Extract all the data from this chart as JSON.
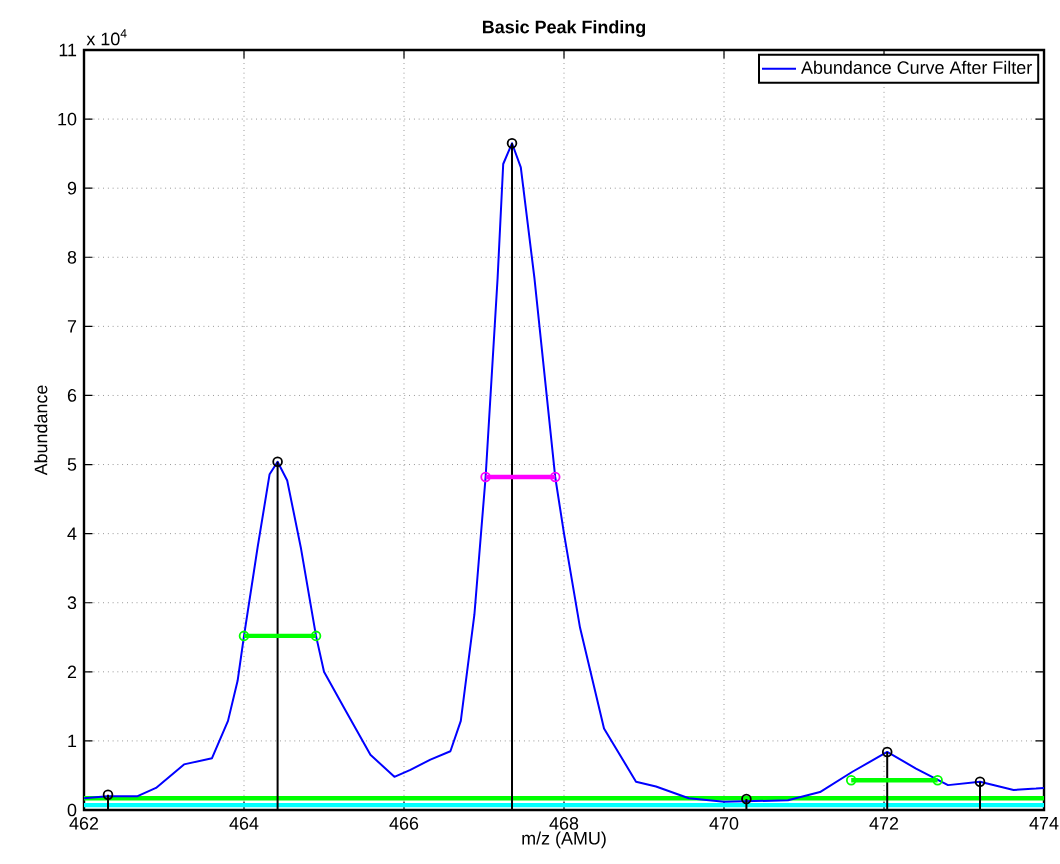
{
  "chart_data": {
    "type": "line",
    "title": "Basic Peak Finding",
    "xlabel": "m/z (AMU)",
    "ylabel": "Abundance",
    "annotations": [
      "x 10$^{4}$"
    ],
    "xlim": [
      462,
      474
    ],
    "xticks": [
      462,
      464,
      466,
      468,
      470,
      472,
      474
    ],
    "ylim": [
      0,
      11
    ],
    "yticks": [
      0,
      1,
      2,
      3,
      4,
      5,
      6,
      7,
      8,
      9,
      10,
      11
    ],
    "grid": true,
    "legend": "top right",
    "series": [
      {
        "color": "#00ffff",
        "marker": "none",
        "x": [
          462,
          474
        ],
        "values": [
          0.07,
          0.07
        ]
      },
      {
        "color": "#00ff00",
        "marker": "none",
        "x": [
          462,
          474
        ],
        "values": [
          0.17,
          0.17
        ]
      },
      {
        "name": "Abundance Curve After Filter",
        "color": "#0000ff",
        "marker": "none",
        "x": [
          462,
          462.29,
          462.67,
          462.9,
          463.25,
          463.6,
          463.8,
          463.92,
          464.0,
          464.17,
          464.32,
          464.42,
          464.54,
          464.71,
          464.9,
          465.0,
          465.25,
          465.58,
          465.88,
          466.08,
          466.33,
          466.58,
          466.71,
          466.88,
          467.02,
          467.17,
          467.24,
          467.35,
          467.46,
          467.63,
          467.89,
          468.0,
          468.2,
          468.5,
          468.9,
          469.15,
          469.56,
          470.0,
          470.8,
          471.2,
          471.6,
          472.04,
          472.4,
          472.8,
          473.2,
          473.62,
          473.9,
          474
        ],
        "values": [
          0.17,
          0.2,
          0.2,
          0.32,
          0.66,
          0.75,
          1.29,
          1.87,
          2.52,
          3.8,
          4.86,
          5.04,
          4.77,
          3.8,
          2.52,
          2.0,
          1.48,
          0.8,
          0.48,
          0.58,
          0.73,
          0.85,
          1.29,
          2.83,
          4.82,
          7.7,
          9.35,
          9.65,
          9.3,
          7.7,
          4.82,
          4.0,
          2.64,
          1.18,
          0.41,
          0.34,
          0.17,
          0.12,
          0.14,
          0.26,
          0.55,
          0.84,
          0.6,
          0.36,
          0.41,
          0.29,
          0.31,
          0.32
        ]
      },
      {
        "type": "lollipop",
        "color": "#000000",
        "marker": "circle",
        "x": [
          462.3,
          464.42,
          467.35,
          470.28,
          472.04,
          473.2
        ],
        "values": [
          0.22,
          5.04,
          9.65,
          0.16,
          0.84,
          0.41
        ]
      },
      {
        "color": "#00ff00",
        "marker": "circle",
        "x": [
          464.0,
          464.9
        ],
        "values": [
          2.52,
          2.52
        ]
      },
      {
        "color": "#ff00ff",
        "marker": "circle",
        "x": [
          467.02,
          467.89
        ],
        "values": [
          4.82,
          4.82
        ]
      },
      {
        "color": "#00ff00",
        "marker": "circle",
        "x": [
          471.59,
          472.67
        ],
        "values": [
          0.43,
          0.43
        ]
      }
    ]
  }
}
